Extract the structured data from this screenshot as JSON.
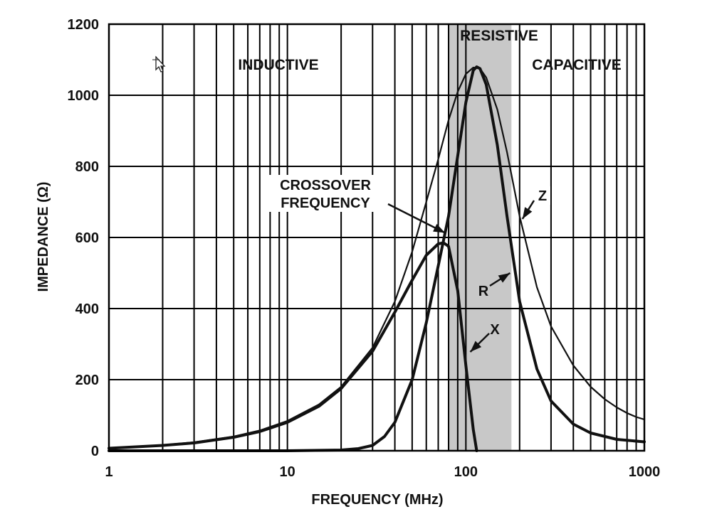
{
  "chart_data": {
    "type": "line",
    "xscale": "log",
    "xlim": [
      1,
      1000
    ],
    "ylim": [
      0,
      1200
    ],
    "x_ticks": [
      1,
      10,
      100,
      1000
    ],
    "x_tick_labels": [
      "1",
      "10",
      "100",
      "1000"
    ],
    "y_ticks": [
      0,
      200,
      400,
      600,
      800,
      1000,
      1200
    ],
    "y_tick_labels": [
      "0",
      "200",
      "400",
      "600",
      "800",
      "1000",
      "1200"
    ],
    "xlabel": "FREQUENCY (MHz)",
    "ylabel": "IMPEDANCE (Ω)",
    "grid": true,
    "regions": [
      {
        "name": "INDUCTIVE",
        "x_range": [
          1,
          80
        ],
        "shaded": false
      },
      {
        "name": "RESISTIVE",
        "x_range": [
          80,
          180
        ],
        "shaded": true,
        "color": "#c8c8c8"
      },
      {
        "name": "CAPACITIVE",
        "x_range": [
          180,
          1000
        ],
        "shaded": false
      }
    ],
    "series": [
      {
        "name": "Z",
        "weight": "thin",
        "x": [
          1,
          2,
          3,
          5,
          7,
          10,
          15,
          20,
          30,
          40,
          50,
          60,
          70,
          80,
          90,
          100,
          110,
          120,
          130,
          150,
          170,
          200,
          250,
          300,
          400,
          500,
          600,
          700,
          800,
          900,
          1000
        ],
        "y": [
          8,
          16,
          24,
          40,
          57,
          84,
          130,
          180,
          290,
          420,
          560,
          700,
          820,
          930,
          1010,
          1060,
          1078,
          1075,
          1050,
          960,
          840,
          660,
          460,
          350,
          240,
          180,
          145,
          122,
          106,
          95,
          88
        ]
      },
      {
        "name": "R",
        "weight": "thick",
        "x": [
          1,
          10,
          20,
          25,
          30,
          35,
          40,
          50,
          60,
          70,
          80,
          90,
          100,
          110,
          115,
          120,
          130,
          150,
          170,
          200,
          250,
          300,
          400,
          500,
          700,
          1000
        ],
        "y": [
          0,
          0,
          2,
          6,
          15,
          40,
          80,
          200,
          360,
          520,
          660,
          830,
          980,
          1070,
          1080,
          1075,
          1030,
          860,
          660,
          420,
          230,
          140,
          75,
          50,
          32,
          25
        ]
      },
      {
        "name": "X",
        "weight": "thick",
        "x": [
          1,
          2,
          3,
          5,
          7,
          10,
          15,
          20,
          30,
          40,
          50,
          60,
          70,
          75,
          80,
          90,
          100,
          110,
          115
        ],
        "y": [
          7,
          15,
          22,
          38,
          54,
          80,
          125,
          175,
          280,
          390,
          480,
          550,
          582,
          585,
          575,
          450,
          240,
          60,
          0
        ]
      }
    ],
    "annotations": [
      {
        "label_lines": [
          "CROSSOVER",
          "FREQUENCY"
        ],
        "target": [
          80,
          585
        ]
      },
      {
        "label": "Z",
        "target": [
          200,
          660
        ]
      },
      {
        "label": "R",
        "target": [
          180,
          510
        ]
      },
      {
        "label": "X",
        "target": [
          102,
          290
        ]
      }
    ]
  }
}
